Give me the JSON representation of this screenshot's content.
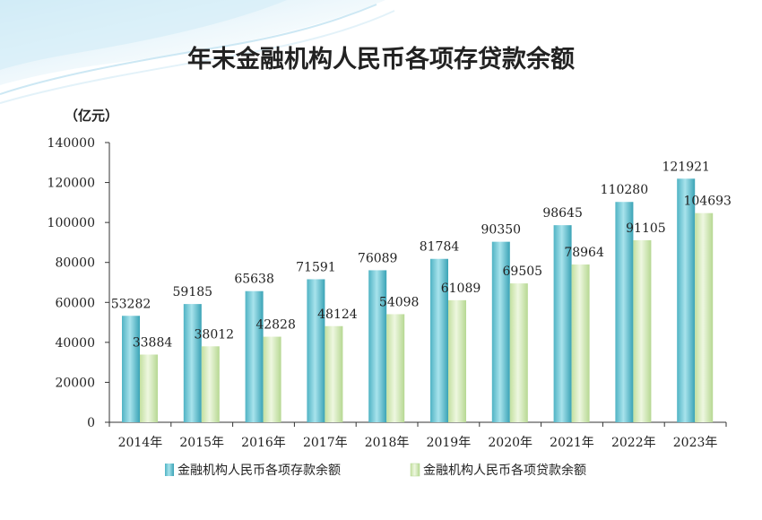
{
  "chart_data": {
    "type": "bar",
    "title": "年末金融机构人民币各项存贷款余额",
    "unit_label": "（亿元）",
    "categories": [
      "2014年",
      "2015年",
      "2016年",
      "2017年",
      "2018年",
      "2019年",
      "2020年",
      "2021年",
      "2022年",
      "2023年"
    ],
    "series": [
      {
        "name": "金融机构人民币各项存款余额",
        "color": "#5bbfcf",
        "values": [
          53282,
          59185,
          65638,
          71591,
          76089,
          81784,
          90350,
          98645,
          110280,
          121921
        ]
      },
      {
        "name": "金融机构人民币各项贷款余额",
        "color": "#cfe8b0",
        "values": [
          33884,
          38012,
          42828,
          48124,
          54098,
          61089,
          69505,
          78964,
          91105,
          104693
        ]
      }
    ],
    "ylim": [
      0,
      140000
    ],
    "yticks": [
      "0",
      "20000",
      "40000",
      "60000",
      "80000",
      "100000",
      "120000",
      "140000"
    ],
    "grid": false,
    "legend_position": "bottom"
  }
}
